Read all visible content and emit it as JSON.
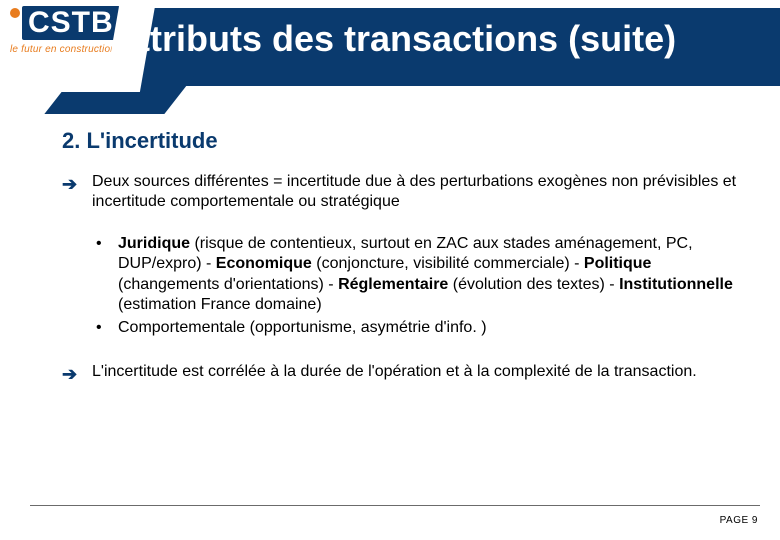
{
  "logo": {
    "brand": "CSTB",
    "tagline": "le futur en construction",
    "brand_bg": "#0a3a6e",
    "accent": "#e87c1e"
  },
  "header": {
    "title_visible_prefix_black": "",
    "title": "ttributs des transactions (suite)",
    "band_color": "#0a3a6e"
  },
  "section": {
    "heading": "2. L'incertitude",
    "heading_color": "#0a3a6e"
  },
  "points": {
    "intro": "Deux sources différentes  = incertitude due à des perturbations exogènes non prévisibles et incertitude comportementale ou stratégique",
    "bullet1": {
      "lead": "Juridique",
      "t1": " (risque de contentieux, surtout en ZAC aux stades aménagement, PC, DUP/expro) - ",
      "b2": "Economique",
      "t2": " (conjoncture, visibilité commerciale) - ",
      "b3": "Politique",
      "t3": " (changements d'orientations) - ",
      "b4": "Réglementaire",
      "t4": " (évolution des textes) - ",
      "b5": "Institutionnelle",
      "t5": " (estimation France domaine)"
    },
    "bullet2": " Comportementale (opportunisme, asymétrie d'info. )",
    "conclusion": "L'incertitude est corrélée à la durée de l'opération et à la complexité de la transaction."
  },
  "footer": {
    "page_label": "PAGE 9"
  },
  "style": {
    "body_fontsize": 16,
    "heading_fontsize": 22,
    "title_fontsize": 36
  }
}
